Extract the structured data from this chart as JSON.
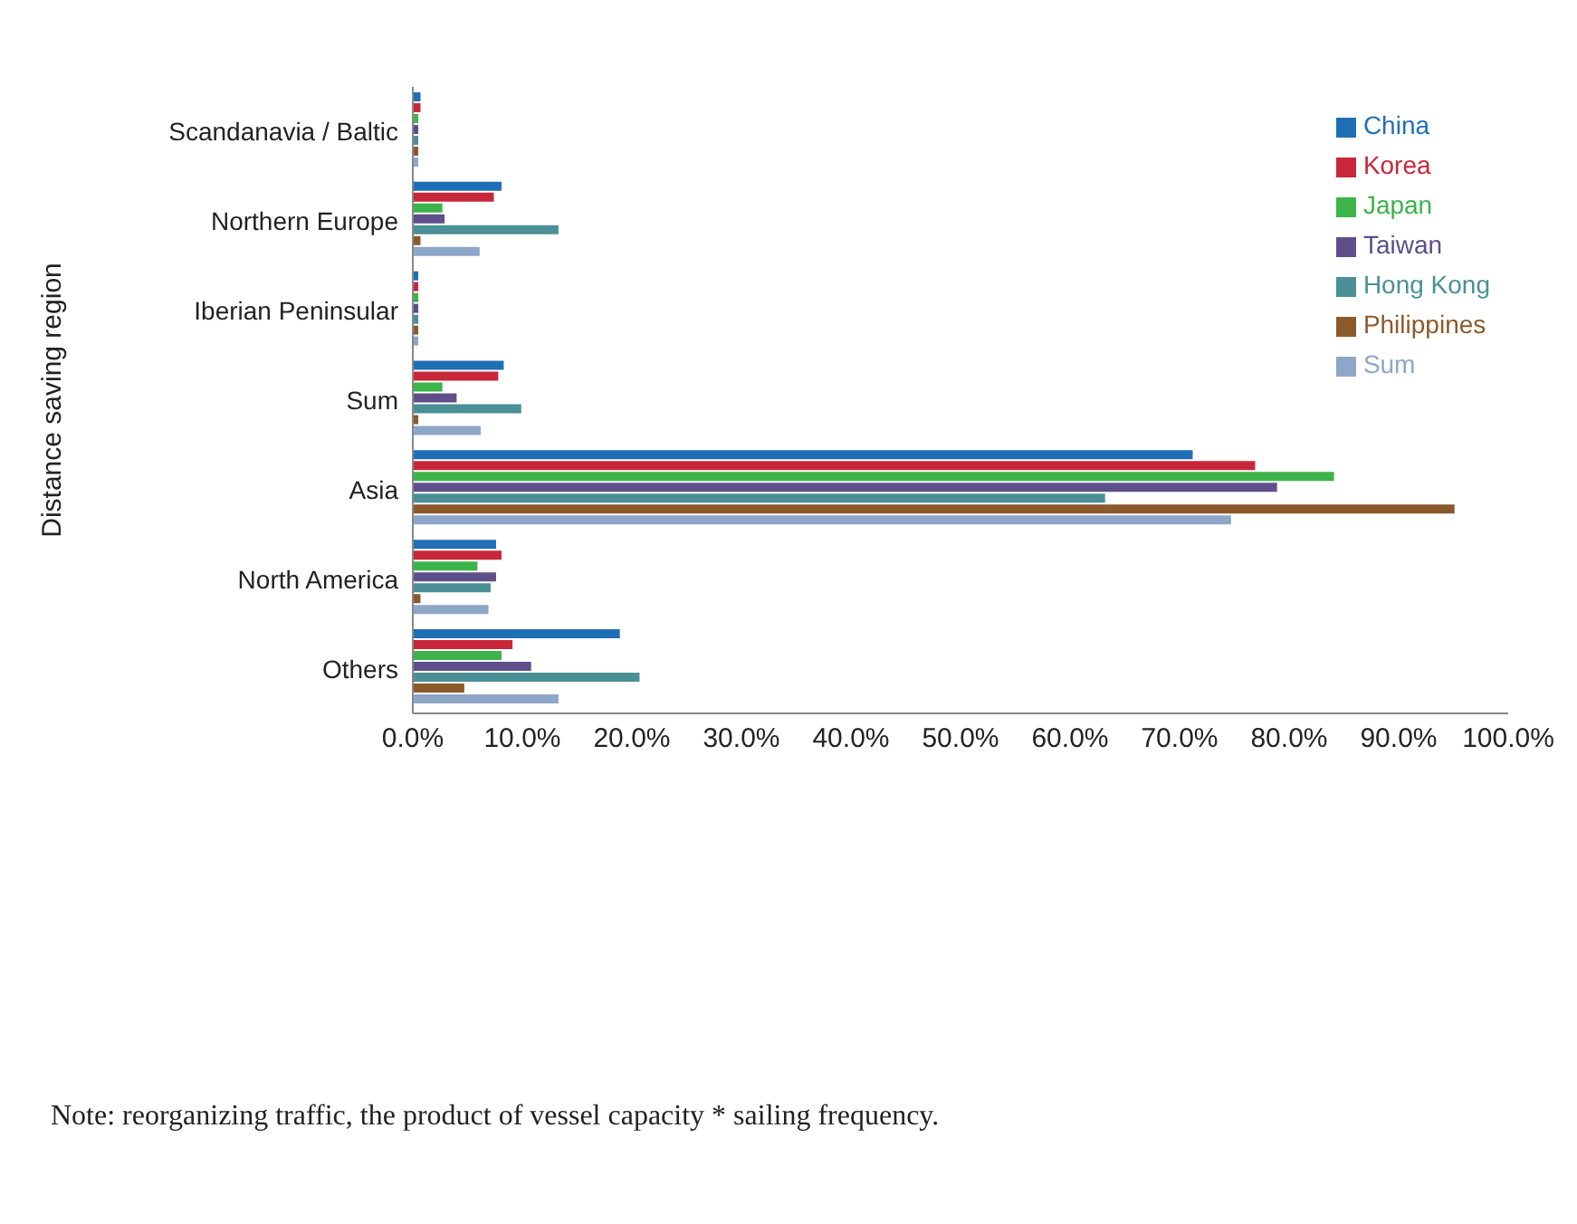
{
  "chart_data": {
    "type": "bar",
    "orientation": "horizontal",
    "ylabel": "Distance saving region",
    "categories": [
      "Scandanavia / Baltic",
      "Northern Europe",
      "Iberian Peninsular",
      "Sum",
      "Asia",
      "North America",
      "Others"
    ],
    "series": [
      {
        "name": "China",
        "color": "#1f6fb5",
        "values": [
          0.7,
          8.1,
          0.5,
          8.3,
          71.2,
          7.6,
          18.9
        ]
      },
      {
        "name": "Korea",
        "color": "#c8273a",
        "values": [
          0.7,
          7.4,
          0.5,
          7.8,
          76.9,
          8.1,
          9.1
        ]
      },
      {
        "name": "Japan",
        "color": "#3cb44a",
        "values": [
          0.5,
          2.7,
          0.5,
          2.7,
          84.1,
          5.9,
          8.1
        ]
      },
      {
        "name": "Taiwan",
        "color": "#5e4f8a",
        "values": [
          0.5,
          2.9,
          0.5,
          4.0,
          78.9,
          7.6,
          10.8
        ]
      },
      {
        "name": "Hong Kong",
        "color": "#4a9096",
        "values": [
          0.5,
          13.3,
          0.5,
          9.9,
          63.2,
          7.1,
          20.7
        ]
      },
      {
        "name": "Philippines",
        "color": "#8b5a2b",
        "values": [
          0.5,
          0.7,
          0.5,
          0.5,
          95.1,
          0.7,
          4.7
        ]
      },
      {
        "name": "Sum",
        "color": "#8ea6c8",
        "values": [
          0.5,
          6.1,
          0.5,
          6.2,
          74.7,
          6.9,
          13.3
        ]
      }
    ],
    "xlim": [
      0,
      100
    ],
    "xticks": [
      {
        "value": 0,
        "label": "0.0%"
      },
      {
        "value": 10,
        "label": "10.0%"
      },
      {
        "value": 20,
        "label": "20.0%"
      },
      {
        "value": 30,
        "label": "30.0%"
      },
      {
        "value": 40,
        "label": "40.0%"
      },
      {
        "value": 50,
        "label": "50.0%"
      },
      {
        "value": 60,
        "label": "60.0%"
      },
      {
        "value": 70,
        "label": "70.0%"
      },
      {
        "value": 80,
        "label": "80.0%"
      },
      {
        "value": 90,
        "label": "90.0%"
      },
      {
        "value": 100,
        "label": "100.0%"
      }
    ],
    "grid": false,
    "legend": "top right",
    "annotations": [
      "Note: reorganizing traffic, the product of vessel capacity * sailing frequency."
    ]
  }
}
